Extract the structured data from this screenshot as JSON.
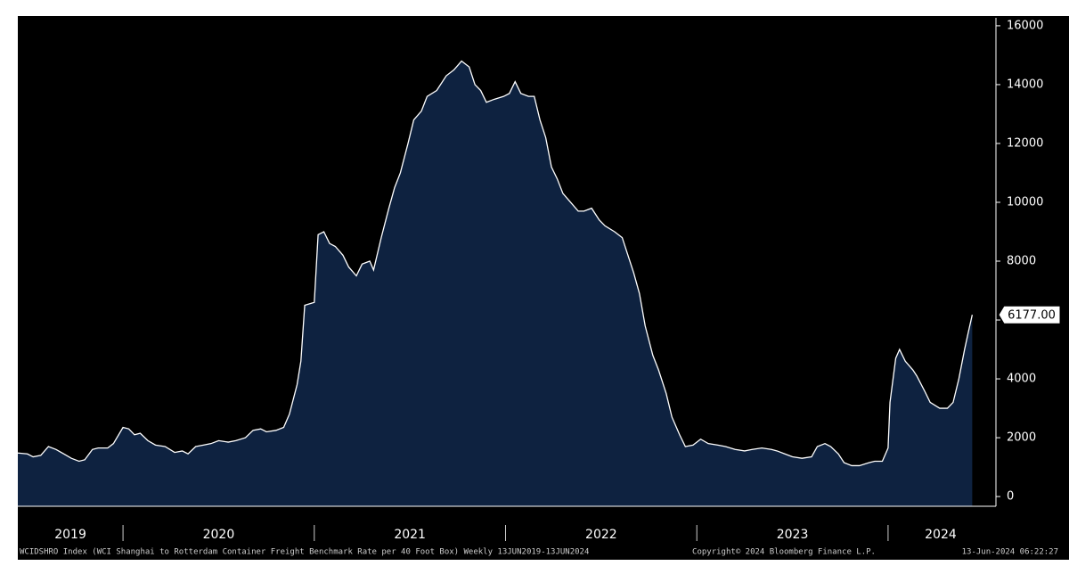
{
  "chart_data": {
    "type": "area",
    "x": [
      2019.45,
      2019.5,
      2019.53,
      2019.57,
      2019.61,
      2019.65,
      2019.69,
      2019.73,
      2019.77,
      2019.8,
      2019.84,
      2019.87,
      2019.92,
      2019.95,
      2020.0,
      2020.03,
      2020.06,
      2020.09,
      2020.13,
      2020.17,
      2020.22,
      2020.27,
      2020.31,
      2020.34,
      2020.38,
      2020.42,
      2020.46,
      2020.5,
      2020.55,
      2020.59,
      2020.64,
      2020.68,
      2020.72,
      2020.75,
      2020.8,
      2020.84,
      2020.87,
      2020.91,
      2020.93,
      2020.95,
      2021.0,
      2021.02,
      2021.05,
      2021.08,
      2021.11,
      2021.15,
      2021.18,
      2021.22,
      2021.25,
      2021.29,
      2021.31,
      2021.35,
      2021.39,
      2021.42,
      2021.45,
      2021.49,
      2021.52,
      2021.56,
      2021.59,
      2021.64,
      2021.69,
      2021.73,
      2021.77,
      2021.81,
      2021.84,
      2021.87,
      2021.9,
      2021.94,
      2021.99,
      2022.02,
      2022.05,
      2022.08,
      2022.12,
      2022.15,
      2022.18,
      2022.21,
      2022.24,
      2022.27,
      2022.3,
      2022.34,
      2022.38,
      2022.41,
      2022.45,
      2022.49,
      2022.52,
      2022.57,
      2022.61,
      2022.64,
      2022.67,
      2022.7,
      2022.73,
      2022.77,
      2022.8,
      2022.84,
      2022.87,
      2022.91,
      2022.94,
      2022.98,
      2023.02,
      2023.06,
      2023.11,
      2023.15,
      2023.2,
      2023.25,
      2023.29,
      2023.34,
      2023.39,
      2023.42,
      2023.46,
      2023.5,
      2023.55,
      2023.6,
      2023.63,
      2023.67,
      2023.7,
      2023.74,
      2023.77,
      2023.81,
      2023.85,
      2023.9,
      2023.93,
      2023.97,
      2024.0,
      2024.01,
      2024.04,
      2024.06,
      2024.09,
      2024.13,
      2024.15,
      2024.19,
      2024.22,
      2024.27,
      2024.31,
      2024.34,
      2024.37,
      2024.4,
      2024.42,
      2024.44
    ],
    "values": [
      1480,
      1450,
      1350,
      1400,
      1700,
      1600,
      1450,
      1300,
      1200,
      1250,
      1600,
      1650,
      1650,
      1800,
      2350,
      2300,
      2100,
      2150,
      1900,
      1750,
      1700,
      1500,
      1550,
      1450,
      1700,
      1750,
      1800,
      1900,
      1850,
      1900,
      2000,
      2250,
      2300,
      2200,
      2250,
      2350,
      2800,
      3800,
      4600,
      6500,
      6600,
      8900,
      9000,
      8600,
      8500,
      8200,
      7800,
      7500,
      7900,
      8000,
      7700,
      8800,
      9800,
      10500,
      11000,
      12000,
      12800,
      13100,
      13600,
      13800,
      14300,
      14500,
      14800,
      14600,
      14000,
      13800,
      13400,
      13500,
      13600,
      13700,
      14100,
      13700,
      13600,
      13600,
      12800,
      12200,
      11200,
      10800,
      10300,
      10000,
      9700,
      9700,
      9800,
      9400,
      9200,
      9000,
      8800,
      8200,
      7600,
      6900,
      5800,
      4800,
      4300,
      3500,
      2700,
      2100,
      1700,
      1750,
      1950,
      1800,
      1750,
      1700,
      1600,
      1550,
      1600,
      1650,
      1600,
      1550,
      1450,
      1350,
      1300,
      1350,
      1700,
      1800,
      1700,
      1450,
      1150,
      1050,
      1050,
      1150,
      1200,
      1200,
      1650,
      3200,
      4700,
      5000,
      4600,
      4300,
      4100,
      3600,
      3200,
      3000,
      3000,
      3200,
      4000,
      5000,
      5600,
      6177
    ],
    "color": "#ffffff",
    "fill_color": "#0e2240",
    "last_value_label": "6177.00",
    "xlim": [
      2019.45,
      2024.55
    ],
    "xticks": [
      2020,
      2021,
      2022,
      2023,
      2024
    ],
    "x_labels": [
      "2019",
      "2020",
      "2021",
      "2022",
      "2023",
      "2024"
    ],
    "ylim": [
      -330,
      16270
    ],
    "yticks": [
      0,
      2000,
      4000,
      6000,
      8000,
      10000,
      12000,
      14000,
      16000
    ],
    "footer_left": "WCIDSHRO Index (WCI Shanghai to Rotterdam Container Freight Benchmark Rate per 40 Foot Box)  Weekly 13JUN2019-13JUN2024",
    "footer_center": "Copyright© 2024 Bloomberg Finance L.P.",
    "footer_right": "13-Jun-2024 06:22:27"
  }
}
